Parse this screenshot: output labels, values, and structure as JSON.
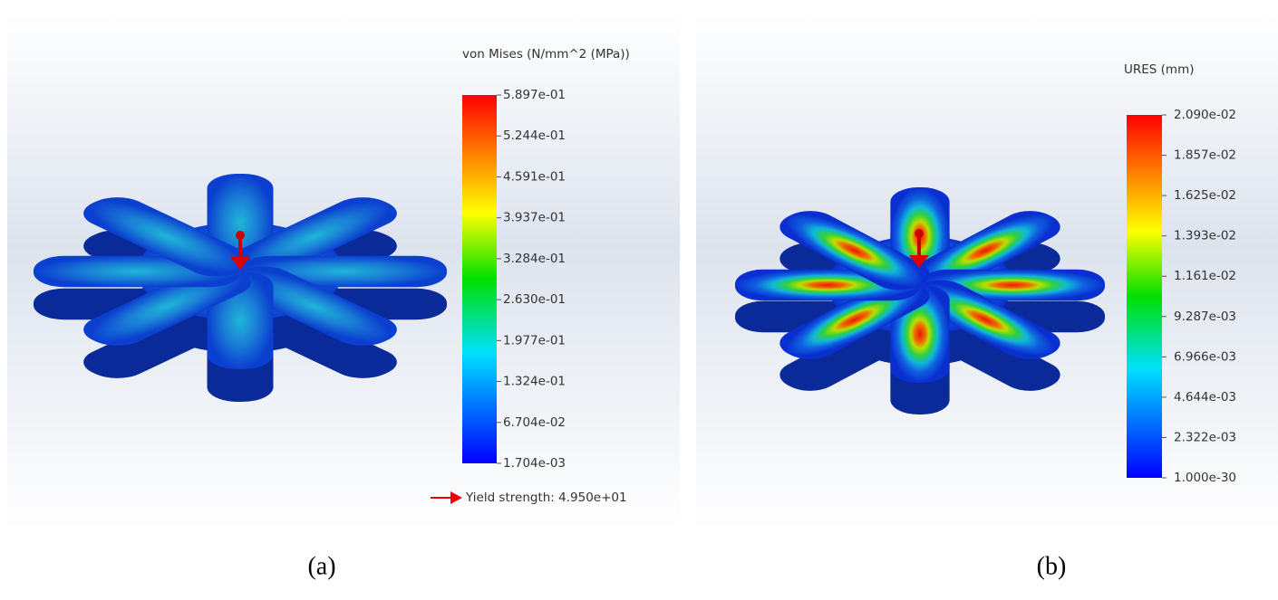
{
  "panels": [
    {
      "legend_title": "von Mises (N/mm^2 (MPa))",
      "scale_labels": [
        "5.897e-01",
        "5.244e-01",
        "4.591e-01",
        "3.937e-01",
        "3.284e-01",
        "2.630e-01",
        "1.977e-01",
        "1.324e-01",
        "6.704e-02",
        "1.704e-03"
      ],
      "annotation": "Yield strength: 4.950e+01",
      "caption": "(a)"
    },
    {
      "legend_title": "URES (mm)",
      "scale_labels": [
        "2.090e-02",
        "1.857e-02",
        "1.625e-02",
        "1.393e-02",
        "1.161e-02",
        "9.287e-03",
        "6.966e-03",
        "4.644e-03",
        "2.322e-03",
        "1.000e-30"
      ],
      "caption": "(b)"
    }
  ]
}
